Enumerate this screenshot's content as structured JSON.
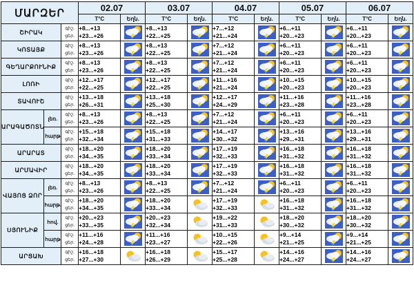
{
  "header": {
    "title": "ՄԱՐԶԵՐ",
    "dates": [
      "02.07",
      "03.07",
      "04.07",
      "05.07",
      "06.07"
    ],
    "temp_label": "T°C",
    "weather_label": "Եղն."
  },
  "night_label": "գիշ.",
  "day_label": "ցեր.",
  "rows": [
    {
      "region": "ՇԻՐԱԿ",
      "sub": "",
      "days": [
        {
          "night": "+8...+13",
          "day": "+23...+26",
          "icon": "thunderstorm-icon"
        },
        {
          "night": "+8...+13",
          "day": "+22...+25",
          "icon": "thunderstorm-icon"
        },
        {
          "night": "+7...+12",
          "day": "+21...+24",
          "icon": "thunderstorm-icon"
        },
        {
          "night": "+6...+11",
          "day": "+20...+23",
          "icon": "thunderstorm-icon"
        },
        {
          "night": "+6...+11",
          "day": "+20...+23",
          "icon": "thunderstorm-icon"
        }
      ]
    },
    {
      "region": "ԿՈՏԱՅՔ",
      "sub": "",
      "days": [
        {
          "night": "+8...+13",
          "day": "+23...+26",
          "icon": "thunderstorm-icon"
        },
        {
          "night": "+8...+13",
          "day": "+22...+25",
          "icon": "thunderstorm-icon"
        },
        {
          "night": "+7...+12",
          "day": "+21...+24",
          "icon": "thunderstorm-icon"
        },
        {
          "night": "+6...+11",
          "day": "+20...+23",
          "icon": "thunderstorm-icon"
        },
        {
          "night": "+6...+11",
          "day": "+20...+23",
          "icon": "thunderstorm-icon"
        }
      ]
    },
    {
      "region": "ԳԵՂԱՐՔՈՒՆԻՔ",
      "sub": "",
      "days": [
        {
          "night": "+8...+13",
          "day": "+23...+26",
          "icon": "thunderstorm-icon"
        },
        {
          "night": "+8...+13",
          "day": "+22...+25",
          "icon": "thunderstorm-icon"
        },
        {
          "night": "+7...+12",
          "day": "+21...+24",
          "icon": "thunderstorm-icon"
        },
        {
          "night": "+6...+11",
          "day": "+20...+23",
          "icon": "thunderstorm-icon"
        },
        {
          "night": "+6...+11",
          "day": "+20...+23",
          "icon": "thunderstorm-icon"
        }
      ]
    },
    {
      "region": "ԼՈՌԻ",
      "sub": "",
      "days": [
        {
          "night": "+12...+17",
          "day": "+22...+25",
          "icon": "thunderstorm-icon"
        },
        {
          "night": "+12...+17",
          "day": "+22...+25",
          "icon": "thunderstorm-icon"
        },
        {
          "night": "+11...+16",
          "day": "+21...+24",
          "icon": "thunderstorm-icon"
        },
        {
          "night": "+10...+15",
          "day": "+20...+23",
          "icon": "thunderstorm-icon"
        },
        {
          "night": "+10...+15",
          "day": "+20...+23",
          "icon": "thunderstorm-icon"
        }
      ]
    },
    {
      "region": "ՏԱՎՈՒՇ",
      "sub": "",
      "days": [
        {
          "night": "+13...+18",
          "day": "+26...+31",
          "icon": "thunderstorm-icon"
        },
        {
          "night": "+13...+18",
          "day": "+25...+30",
          "icon": "thunderstorm-icon"
        },
        {
          "night": "+12...+17",
          "day": "+24...+29",
          "icon": "thunderstorm-icon"
        },
        {
          "night": "+11...+16",
          "day": "+23...+28",
          "icon": "thunderstorm-icon"
        },
        {
          "night": "+11...+16",
          "day": "+23...+28",
          "icon": "thunderstorm-icon"
        }
      ]
    },
    {
      "region": "ԱՐԱԳԱԾՈՏՆ",
      "sub": "լեռ.",
      "days": [
        {
          "night": "+8...+13",
          "day": "+23...+26",
          "icon": "thunderstorm-icon"
        },
        {
          "night": "+8...+13",
          "day": "+22...+25",
          "icon": "thunderstorm-icon"
        },
        {
          "night": "+7...+12",
          "day": "+21...+24",
          "icon": "thunderstorm-icon"
        },
        {
          "night": "+6...+11",
          "day": "+20...+23",
          "icon": "thunderstorm-icon"
        },
        {
          "night": "+6...+11",
          "day": "+20...+23",
          "icon": "thunderstorm-icon"
        }
      ]
    },
    {
      "region": "",
      "sub": "հարթ",
      "days": [
        {
          "night": "+15...+18",
          "day": "+32...+34",
          "icon": "thunderstorm-icon"
        },
        {
          "night": "+15...+18",
          "day": "+31...+33",
          "icon": "thunderstorm-icon"
        },
        {
          "night": "+14...+17",
          "day": "+30...+32",
          "icon": "thunderstorm-icon"
        },
        {
          "night": "+13...+16",
          "day": "+29...+31",
          "icon": "thunderstorm-icon"
        },
        {
          "night": "+13...+16",
          "day": "+29...+31",
          "icon": "thunderstorm-icon"
        }
      ]
    },
    {
      "region": "ԱՐԱՐԱՏ",
      "sub": "",
      "days": [
        {
          "night": "+18...+20",
          "day": "+34...+35",
          "icon": "thunderstorm-icon"
        },
        {
          "night": "+18...+20",
          "day": "+33...+34",
          "icon": "thunderstorm-icon"
        },
        {
          "night": "+17...+19",
          "day": "+32...+33",
          "icon": "thunderstorm-icon"
        },
        {
          "night": "+16...+18",
          "day": "+31...+32",
          "icon": "thunderstorm-icon"
        },
        {
          "night": "+16...+18",
          "day": "+31...+32",
          "icon": "thunderstorm-icon"
        }
      ]
    },
    {
      "region": "ԱՐՄԱՎԻՐ",
      "sub": "",
      "days": [
        {
          "night": "+18...+20",
          "day": "+34...+35",
          "icon": "thunderstorm-icon"
        },
        {
          "night": "+18...+20",
          "day": "+33...+34",
          "icon": "thunderstorm-icon"
        },
        {
          "night": "+17...+19",
          "day": "+32...+33",
          "icon": "thunderstorm-icon"
        },
        {
          "night": "+16...+18",
          "day": "+31...+32",
          "icon": "thunderstorm-icon"
        },
        {
          "night": "+16...+18",
          "day": "+31...+32",
          "icon": "thunderstorm-icon"
        }
      ]
    },
    {
      "region": "ՎԱՅՈՑ ՁՈՐ",
      "sub": "լեռ.",
      "days": [
        {
          "night": "+8...+13",
          "day": "+23...+26",
          "icon": "thunderstorm-icon"
        },
        {
          "night": "+8...+13",
          "day": "+22...+25",
          "icon": "thunderstorm-icon"
        },
        {
          "night": "+7...+12",
          "day": "+21...+24",
          "icon": "thunderstorm-icon"
        },
        {
          "night": "+6...+11",
          "day": "+20...+23",
          "icon": "thunderstorm-icon"
        },
        {
          "night": "+6...+11",
          "day": "+20...+23",
          "icon": "thunderstorm-icon"
        }
      ]
    },
    {
      "region": "",
      "sub": "հարթ.",
      "days": [
        {
          "night": "+18...+20",
          "day": "+34...+35",
          "icon": "thunderstorm-icon"
        },
        {
          "night": "+18...+20",
          "day": "+33...+34",
          "icon": "partly-cloudy-icon"
        },
        {
          "night": "+17...+19",
          "day": "+32...+33",
          "icon": "partly-cloudy-icon"
        },
        {
          "night": "+16...+18",
          "day": "+31...+32",
          "icon": "thunderstorm-icon"
        },
        {
          "night": "+16...+18",
          "day": "+31...+32",
          "icon": "thunderstorm-icon"
        }
      ]
    },
    {
      "region": "ՍՅՈՒՆԻՔ",
      "sub": "հով.",
      "days": [
        {
          "night": "+20...+23",
          "day": "+33...+35",
          "icon": "thunderstorm-icon"
        },
        {
          "night": "+20...+23",
          "day": "+32...+34",
          "icon": "partly-cloudy-icon"
        },
        {
          "night": "+19...+22",
          "day": "+31...+33",
          "icon": "partly-cloudy-icon"
        },
        {
          "night": "+18...+20",
          "day": "+30...+32",
          "icon": "thunderstorm-icon"
        },
        {
          "night": "+18...+20",
          "day": "+30...+32",
          "icon": "thunderstorm-icon"
        }
      ]
    },
    {
      "region": "",
      "sub": "հարթ",
      "days": [
        {
          "night": "+11...+16",
          "day": "+24...+28",
          "icon": "thunderstorm-icon"
        },
        {
          "night": "+11...+16",
          "day": "+23...+27",
          "icon": "partly-cloudy-icon"
        },
        {
          "night": "+10...+15",
          "day": "+22...+26",
          "icon": "partly-cloudy-icon"
        },
        {
          "night": "+9...+14",
          "day": "+21...+25",
          "icon": "thunderstorm-icon"
        },
        {
          "night": "+9...+14",
          "day": "+21...+25",
          "icon": "thunderstorm-icon"
        }
      ]
    },
    {
      "region": "ԱՐՑԱԽ",
      "sub": "",
      "days": [
        {
          "night": "+16...+18",
          "day": "+27...+30",
          "icon": "partly-cloudy-icon"
        },
        {
          "night": "+16...+18",
          "day": "+26...+29",
          "icon": "partly-cloudy-icon"
        },
        {
          "night": "+15...+17",
          "day": "+25...+28",
          "icon": "partly-cloudy-icon"
        },
        {
          "night": "+14...+16",
          "day": "+24...+27",
          "icon": "thunderstorm-icon"
        },
        {
          "night": "+14...+16",
          "day": "+24...+27",
          "icon": "thunderstorm-icon"
        }
      ]
    }
  ],
  "colors": {
    "header_bg": "#e2eef8",
    "border": "#1a1a1a",
    "storm_sky": "#3d5fc4",
    "sun": "#f6c21b",
    "lightning": "#f0dc2a"
  }
}
